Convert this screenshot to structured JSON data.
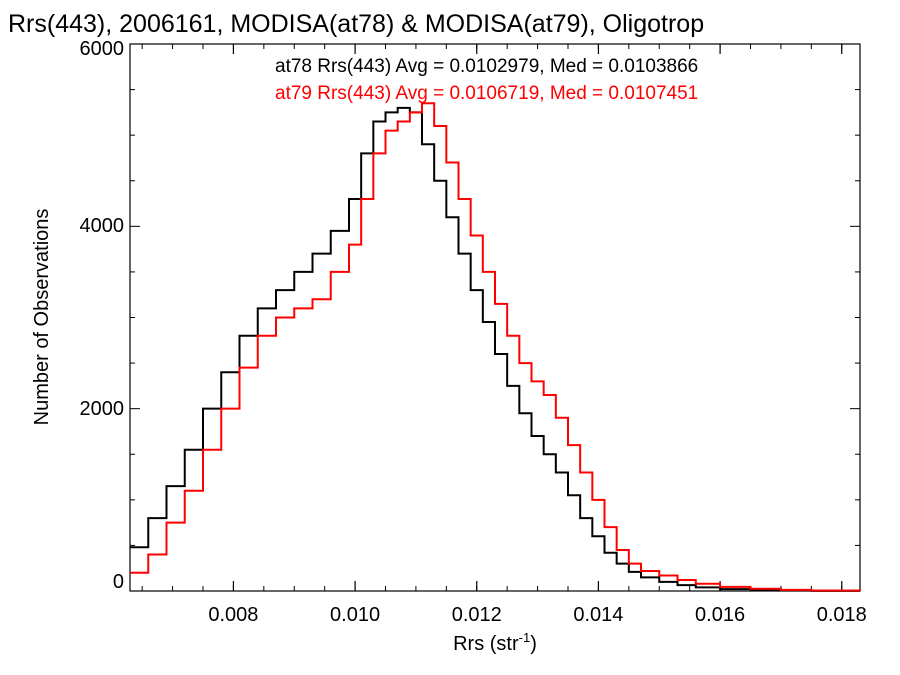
{
  "chart_data": {
    "type": "line",
    "title": "Rrs(443), 2006161, MODISA(at78) & MODISA(at79), Oligotrop",
    "xlabel": "Rrs (str",
    "xlabel_sup": "-1",
    "xlabel_close": ")",
    "ylabel": "Number of Observations",
    "xlim": [
      0.0063,
      0.0183
    ],
    "ylim": [
      0,
      6000
    ],
    "x_ticks": [
      0.008,
      0.01,
      0.012,
      0.014,
      0.016,
      0.018
    ],
    "x_tick_labels": [
      "0.008",
      "0.010",
      "0.012",
      "0.014",
      "0.016",
      "0.018"
    ],
    "y_ticks": [
      0,
      2000,
      4000,
      6000
    ],
    "y_tick_labels": [
      "0",
      "2000",
      "4000",
      "6000"
    ],
    "grid": false,
    "legend_position": "top-right",
    "annotations": [
      {
        "text": "at78 Rrs(443) Avg = 0.0102979, Med = 0.0103866",
        "color": "#000000"
      },
      {
        "text": "at79 Rrs(443) Avg = 0.0106719, Med = 0.0107451",
        "color": "#ff0000"
      }
    ],
    "series": [
      {
        "color": "#000000",
        "x": [
          0.0063,
          0.0066,
          0.0069,
          0.0072,
          0.0075,
          0.0078,
          0.0081,
          0.0084,
          0.0087,
          0.009,
          0.0093,
          0.0096,
          0.0099,
          0.0101,
          0.0103,
          0.0105,
          0.0107,
          0.0109,
          0.0111,
          0.0113,
          0.0115,
          0.0117,
          0.0119,
          0.0121,
          0.0123,
          0.0125,
          0.0127,
          0.0129,
          0.0131,
          0.0133,
          0.0135,
          0.0137,
          0.0139,
          0.0141,
          0.0143,
          0.0145,
          0.0147,
          0.015,
          0.0153,
          0.0156,
          0.016,
          0.0165,
          0.017,
          0.0175,
          0.0183
        ],
        "values": [
          480,
          800,
          1150,
          1550,
          2000,
          2400,
          2800,
          3100,
          3300,
          3500,
          3700,
          3950,
          4300,
          4800,
          5150,
          5250,
          5300,
          5250,
          4900,
          4500,
          4100,
          3700,
          3300,
          2950,
          2600,
          2250,
          1950,
          1700,
          1500,
          1300,
          1050,
          800,
          600,
          420,
          300,
          210,
          150,
          100,
          65,
          40,
          20,
          10,
          5,
          2,
          0
        ]
      },
      {
        "color": "#ff0000",
        "x": [
          0.0063,
          0.0066,
          0.0069,
          0.0072,
          0.0075,
          0.0078,
          0.0081,
          0.0084,
          0.0087,
          0.009,
          0.0093,
          0.0096,
          0.0099,
          0.0101,
          0.0103,
          0.0105,
          0.0107,
          0.0109,
          0.0111,
          0.0113,
          0.0115,
          0.0117,
          0.0119,
          0.0121,
          0.0123,
          0.0125,
          0.0127,
          0.0129,
          0.0131,
          0.0133,
          0.0135,
          0.0137,
          0.0139,
          0.0141,
          0.0143,
          0.0145,
          0.0147,
          0.015,
          0.0153,
          0.0156,
          0.016,
          0.0165,
          0.017,
          0.0175,
          0.0183
        ],
        "values": [
          200,
          400,
          750,
          1100,
          1550,
          2000,
          2450,
          2800,
          3000,
          3100,
          3200,
          3500,
          3800,
          4300,
          4800,
          5050,
          5150,
          5250,
          5350,
          5100,
          4700,
          4300,
          3900,
          3500,
          3150,
          2800,
          2500,
          2300,
          2150,
          1900,
          1600,
          1300,
          1000,
          700,
          450,
          300,
          220,
          170,
          120,
          80,
          45,
          25,
          12,
          5,
          0
        ]
      }
    ]
  }
}
